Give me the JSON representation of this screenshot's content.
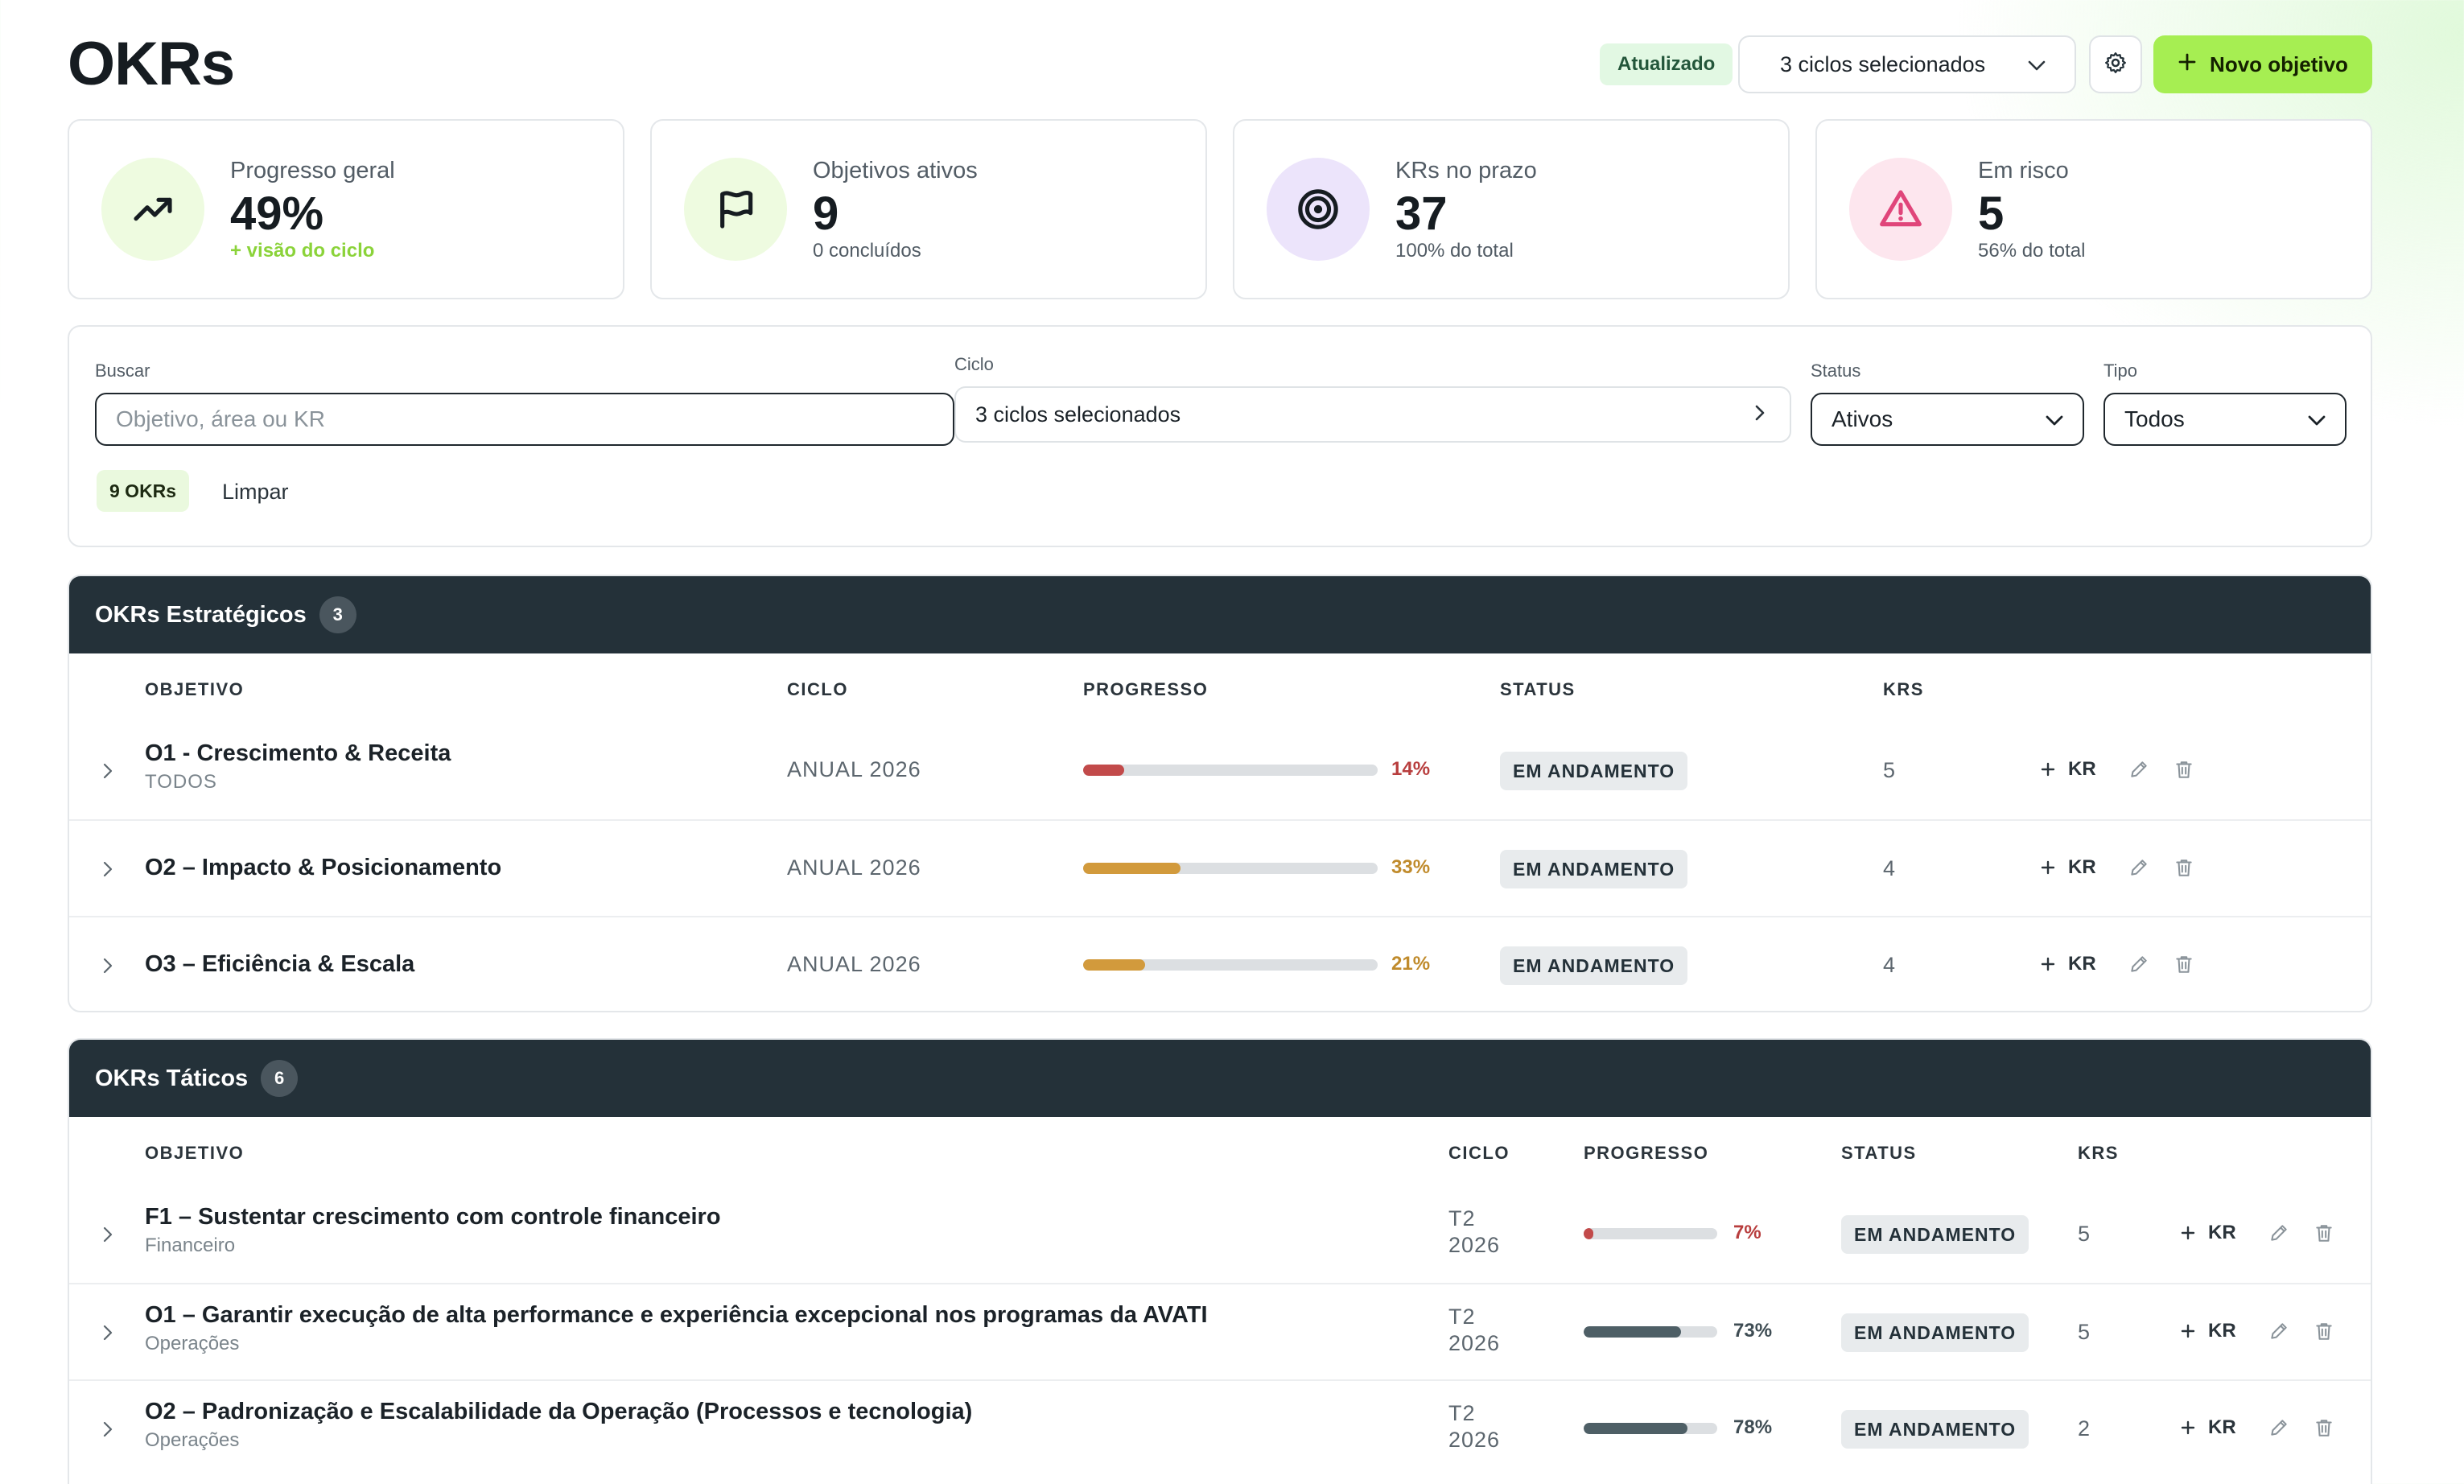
{
  "header": {
    "title": "OKRs",
    "updated_badge": "Atualizado",
    "cycle_selector": "3 ciclos selecionados",
    "settings_icon": "gear-icon",
    "new_button": "Novo objetivo"
  },
  "stats": [
    {
      "label": "Progresso geral",
      "value": "49%",
      "sub": "+ visão do ciclo",
      "icon": "trending-up-icon",
      "color": "#eefbe0"
    },
    {
      "label": "Objetivos ativos",
      "value": "9",
      "sub": "0 concluídos",
      "icon": "flag-icon",
      "color": "#eefbe0"
    },
    {
      "label": "KRs no prazo",
      "value": "37",
      "sub": "100% do total",
      "icon": "target-icon",
      "color": "#ece4fb"
    },
    {
      "label": "Em risco",
      "value": "5",
      "sub": "56% do total",
      "icon": "warning-icon",
      "color": "#fde6ee"
    }
  ],
  "filters": {
    "search_label": "Buscar",
    "search_placeholder": "Objetivo, área ou KR",
    "search_value": "",
    "cycle_label": "Ciclo",
    "cycle_value": "3 ciclos selecionados",
    "status_label": "Status",
    "status_value": "Ativos",
    "type_label": "Tipo",
    "type_value": "Todos",
    "count_pill": "9 OKRs",
    "clear_label": "Limpar"
  },
  "strategic": {
    "title": "OKRs Estratégicos",
    "count": "3",
    "columns": {
      "objective": "OBJETIVO",
      "cycle": "CICLO",
      "progress": "PROGRESSO",
      "status": "STATUS",
      "krs": "KRS"
    },
    "rows": [
      {
        "name": "O1  -  Crescimento & Receita",
        "sub": "TODOS",
        "cycle": "ANUAL 2026",
        "progress": 14,
        "progress_label": "14%",
        "color": "#c24a4a",
        "status": "EM ANDAMENTO",
        "krs": "5",
        "add_kr": "KR"
      },
      {
        "name": "O2 – Impacto & Posicionamento",
        "sub": "",
        "cycle": "ANUAL 2026",
        "progress": 33,
        "progress_label": "33%",
        "color": "#d29a3c",
        "status": "EM ANDAMENTO",
        "krs": "4",
        "add_kr": "KR"
      },
      {
        "name": "O3 – Eficiência & Escala",
        "sub": "",
        "cycle": "ANUAL 2026",
        "progress": 21,
        "progress_label": "21%",
        "color": "#d29a3c",
        "status": "EM ANDAMENTO",
        "krs": "4",
        "add_kr": "KR"
      }
    ]
  },
  "tactical": {
    "title": "OKRs Táticos",
    "count": "6",
    "columns": {
      "objective": "OBJETIVO",
      "cycle": "CICLO",
      "progress": "PROGRESSO",
      "status": "STATUS",
      "krs": "KRS"
    },
    "rows": [
      {
        "name": "F1 – Sustentar crescimento com controle financeiro",
        "sub": "Financeiro",
        "cycle_top": "T2",
        "cycle_bottom": "2026",
        "progress": 7,
        "progress_label": "7%",
        "color": "#c24a4a",
        "status": "EM ANDAMENTO",
        "krs": "5",
        "add_kr": "KR"
      },
      {
        "name": "O1 – Garantir execução de alta performance e experiência excepcional nos programas da AVATI",
        "sub": "Operações",
        "cycle_top": "T2",
        "cycle_bottom": "2026",
        "progress": 73,
        "progress_label": "73%",
        "color": "#4e5f66",
        "status": "EM ANDAMENTO",
        "krs": "5",
        "add_kr": "KR"
      },
      {
        "name": "O2 – Padronização e Escalabilidade da Operação (Processos e tecnologia)",
        "sub": "Operações",
        "cycle_top": "T2",
        "cycle_bottom": "2026",
        "progress": 78,
        "progress_label": "78%",
        "color": "#4e5f66",
        "status": "EM ANDAMENTO",
        "krs": "2",
        "add_kr": "KR"
      }
    ]
  }
}
